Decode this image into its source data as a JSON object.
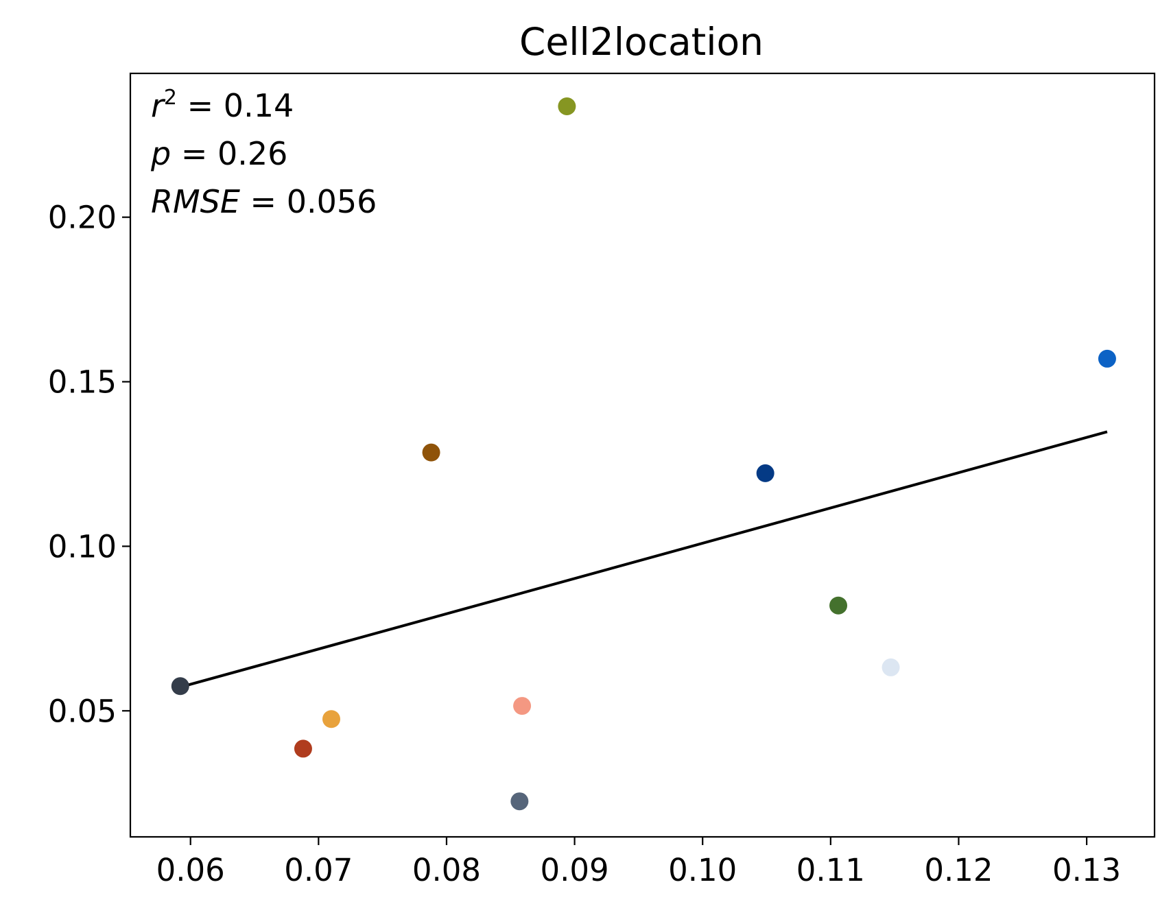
{
  "chart_data": {
    "type": "scatter",
    "title": "Cell2location",
    "xlabel": "",
    "ylabel": "",
    "xlim": [
      0.0553,
      0.1353
    ],
    "ylim": [
      0.0117,
      0.2437
    ],
    "xticks": [
      0.06,
      0.07,
      0.08,
      0.09,
      0.1,
      0.11,
      0.12,
      0.13
    ],
    "xtick_labels": [
      "0.06",
      "0.07",
      "0.08",
      "0.09",
      "0.10",
      "0.11",
      "0.12",
      "0.13"
    ],
    "yticks": [
      0.05,
      0.1,
      0.15,
      0.2
    ],
    "ytick_labels": [
      "0.05",
      "0.10",
      "0.15",
      "0.20"
    ],
    "grid": false,
    "points": [
      {
        "x": 0.0592,
        "y": 0.0575,
        "color": "#343d4a"
      },
      {
        "x": 0.0688,
        "y": 0.0385,
        "color": "#b03c1e"
      },
      {
        "x": 0.071,
        "y": 0.0475,
        "color": "#e8a23c"
      },
      {
        "x": 0.0788,
        "y": 0.1285,
        "color": "#8f5309"
      },
      {
        "x": 0.0857,
        "y": 0.0225,
        "color": "#56657a"
      },
      {
        "x": 0.0859,
        "y": 0.0515,
        "color": "#f49882"
      },
      {
        "x": 0.0894,
        "y": 0.2337,
        "color": "#869622"
      },
      {
        "x": 0.1049,
        "y": 0.1222,
        "color": "#043a85"
      },
      {
        "x": 0.1106,
        "y": 0.082,
        "color": "#44712d"
      },
      {
        "x": 0.1147,
        "y": 0.0632,
        "color": "#dce6f2"
      },
      {
        "x": 0.1316,
        "y": 0.157,
        "color": "#0c62c5"
      }
    ],
    "fit_line": {
      "x": [
        0.0592,
        0.1316
      ],
      "y": [
        0.0572,
        0.1348
      ],
      "color": "#000000"
    },
    "annotations": {
      "r2_label": "r",
      "r2_sup": "2",
      "r2_value": " = 0.14",
      "p_label": "p",
      "p_value": " = 0.26",
      "rmse_label": "RMSE",
      "rmse_value": " = 0.056"
    }
  }
}
